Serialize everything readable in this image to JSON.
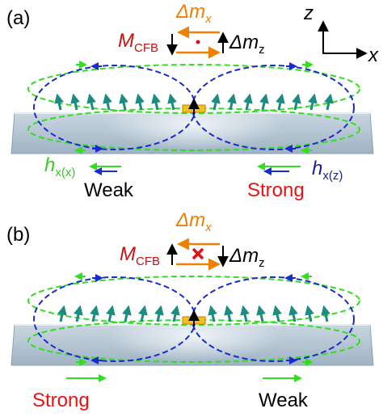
{
  "axes": {
    "z": "z",
    "x": "x"
  },
  "panels": [
    {
      "label": "(a)",
      "delta_mx": {
        "symbol": "Δm",
        "subscript": "x"
      },
      "m_cfb": {
        "symbol": "M",
        "subscript": "CFB"
      },
      "delta_mz": {
        "symbol": "Δm",
        "subscript": "z"
      },
      "h_left": {
        "symbol": "h",
        "subscript": "x(x)"
      },
      "h_right": {
        "symbol": "h",
        "subscript": "x(z)"
      },
      "left_text": "Weak",
      "right_text": "Strong"
    },
    {
      "label": "(b)",
      "delta_mx": {
        "symbol": "Δm",
        "subscript": "x"
      },
      "m_cfb": {
        "symbol": "M",
        "subscript": "CFB"
      },
      "delta_mz": {
        "symbol": "Δm",
        "subscript": "z"
      },
      "left_text": "Strong",
      "right_text": "Weak"
    }
  ]
}
